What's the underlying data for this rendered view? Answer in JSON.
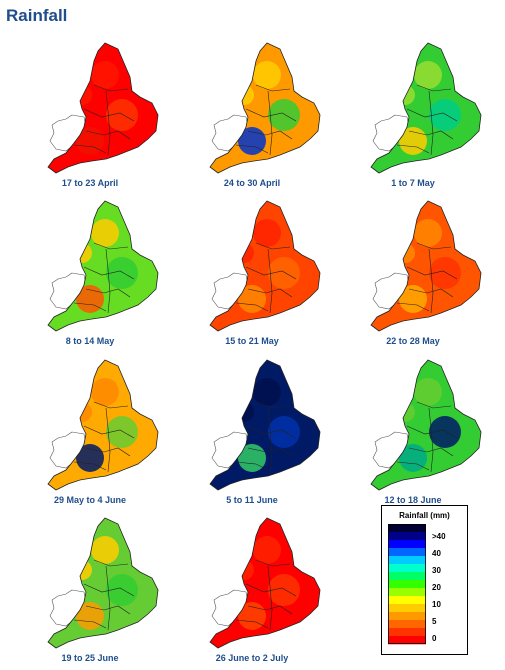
{
  "title": "Rainfall",
  "panels": [
    {
      "caption": "17 to 23 April",
      "colors": [
        "#ff0000",
        "#ff1500",
        "#ff3300",
        "#f01200"
      ]
    },
    {
      "caption": "24 to 30 April",
      "colors": [
        "#ff9900",
        "#ffcc00",
        "#33cc33",
        "#0033cc"
      ]
    },
    {
      "caption": "1 to 7 May",
      "colors": [
        "#33cc33",
        "#99dd33",
        "#00cc88",
        "#ffcc00"
      ]
    },
    {
      "caption": "8 to 14 May",
      "colors": [
        "#66dd22",
        "#ffcc00",
        "#33cc33",
        "#ff5500"
      ]
    },
    {
      "caption": "15 to 21 May",
      "colors": [
        "#ff4400",
        "#ff2200",
        "#ff6600",
        "#ff8800"
      ]
    },
    {
      "caption": "22 to 28 May",
      "colors": [
        "#ff5500",
        "#ff8800",
        "#ff3300",
        "#ffaa00"
      ]
    },
    {
      "caption": "29 May to 4 June",
      "colors": [
        "#ffaa00",
        "#ff8800",
        "#66cc33",
        "#001a66"
      ]
    },
    {
      "caption": "5 to 11 June",
      "colors": [
        "#001a66",
        "#00114d",
        "#0033aa",
        "#33cc66"
      ]
    },
    {
      "caption": "12 to 18 June",
      "colors": [
        "#33cc33",
        "#66cc33",
        "#001a66",
        "#00aa88"
      ]
    },
    {
      "caption": "19 to 25 June",
      "colors": [
        "#66cc33",
        "#ffcc00",
        "#33cc33",
        "#ff9900"
      ]
    },
    {
      "caption": "26 June to 2 July",
      "colors": [
        "#ff0000",
        "#ff2200",
        "#ff3300",
        "#ff4400"
      ]
    }
  ],
  "legend": {
    "title": "Rainfall (mm)",
    "labels": [
      ">40",
      "40",
      "30",
      "20",
      "10",
      "5",
      "0"
    ],
    "scale_colors": [
      "#000033",
      "#000088",
      "#0000ff",
      "#0066ff",
      "#00ccff",
      "#00ffcc",
      "#00ff66",
      "#33ff00",
      "#99ff00",
      "#ffff00",
      "#ffcc00",
      "#ff9900",
      "#ff6600",
      "#ff3300",
      "#ff0000"
    ]
  }
}
